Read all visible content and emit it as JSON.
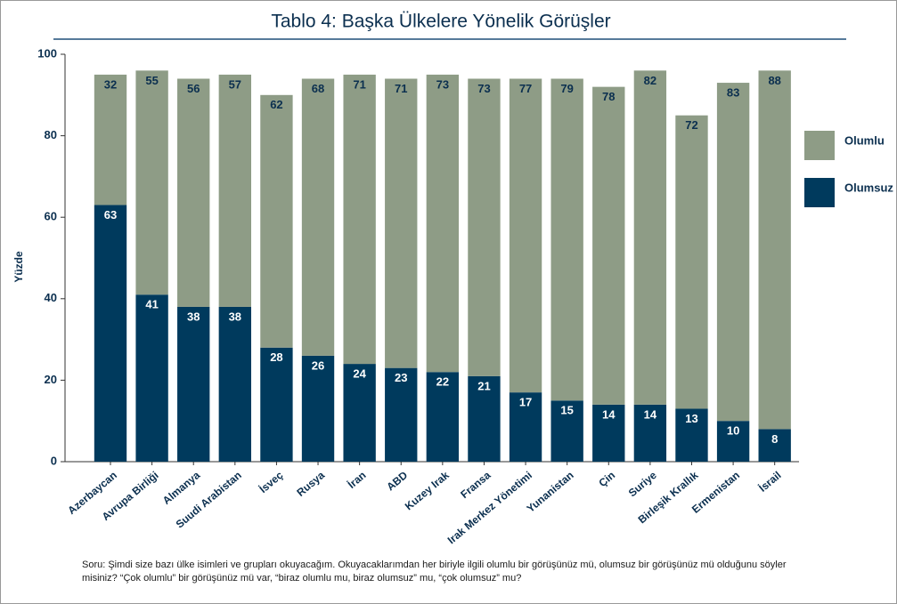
{
  "chart_data": {
    "type": "stacked_bar",
    "title": "Tablo 4: Başka Ülkelere Yönelik Görüşler",
    "y_label": "Yüzde",
    "categories": [
      "Azerbaycan",
      "Avrupa Birliği",
      "Almanya",
      "Suudi Arabistan",
      "İsveç",
      "Rusya",
      "İran",
      "ABD",
      "Kuzey Irak",
      "Fransa",
      "Irak Merkez Yönetimi",
      "Yunanistan",
      "Çin",
      "Suriye",
      "Birleşik Krallık",
      "Ermenistan",
      "İsrail"
    ],
    "series": [
      {
        "name": "Olumsuz",
        "color": "#003a5d",
        "values": [
          63,
          41,
          38,
          38,
          28,
          26,
          24,
          23,
          22,
          21,
          17,
          15,
          14,
          14,
          13,
          10,
          8
        ]
      },
      {
        "name": "Olumlu",
        "color": "#8e9c86",
        "values": [
          32,
          55,
          56,
          57,
          62,
          68,
          71,
          71,
          73,
          73,
          77,
          79,
          78,
          82,
          72,
          83,
          88
        ]
      }
    ],
    "ylim": [
      0,
      100
    ],
    "yticks": [
      0,
      20,
      40,
      60,
      80,
      100
    ],
    "legend": "right",
    "note": "Soru: Şimdi size bazı ülke isimleri ve grupları okuyacağım. Okuyacaklarımdan her biriyle ilgili olumlu bir görüşünüz mü, olumsuz bir görüşünüz mü olduğunu söyler misiniz? “Çok olumlu” bir görüşünüz mü var, “biraz olumlu mu, biraz olumsuz” mu, “çok olumsuz” mu?"
  }
}
